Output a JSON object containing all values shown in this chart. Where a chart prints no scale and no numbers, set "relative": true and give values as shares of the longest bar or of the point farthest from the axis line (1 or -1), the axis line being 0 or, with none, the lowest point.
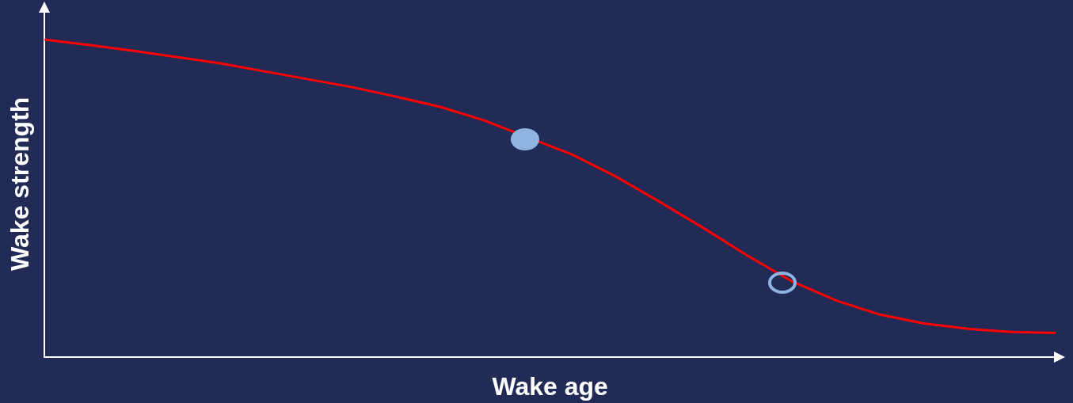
{
  "chart_data": {
    "type": "line",
    "relative": true,
    "xlabel": "Wake age",
    "ylabel": "Wake strength",
    "grid": false,
    "legend": false,
    "marker": "none",
    "categories": [
      null,
      null,
      null,
      null,
      null,
      null,
      null,
      null,
      null,
      null,
      null,
      null,
      null,
      null,
      null,
      null,
      null,
      null,
      null,
      null,
      null,
      null,
      null,
      null
    ],
    "series": [
      {
        "color": "#ff0000",
        "values": [
          1,
          0.983,
          0.965,
          0.945,
          0.925,
          0.9,
          0.875,
          0.85,
          0.82,
          0.788,
          0.745,
          null,
          0.638,
          0.568,
          0.488,
          0.405,
          0.318,
          0.238,
          0.178,
          0.133,
          0.105,
          0.088,
          0.078,
          0.075
        ]
      }
    ]
  }
}
